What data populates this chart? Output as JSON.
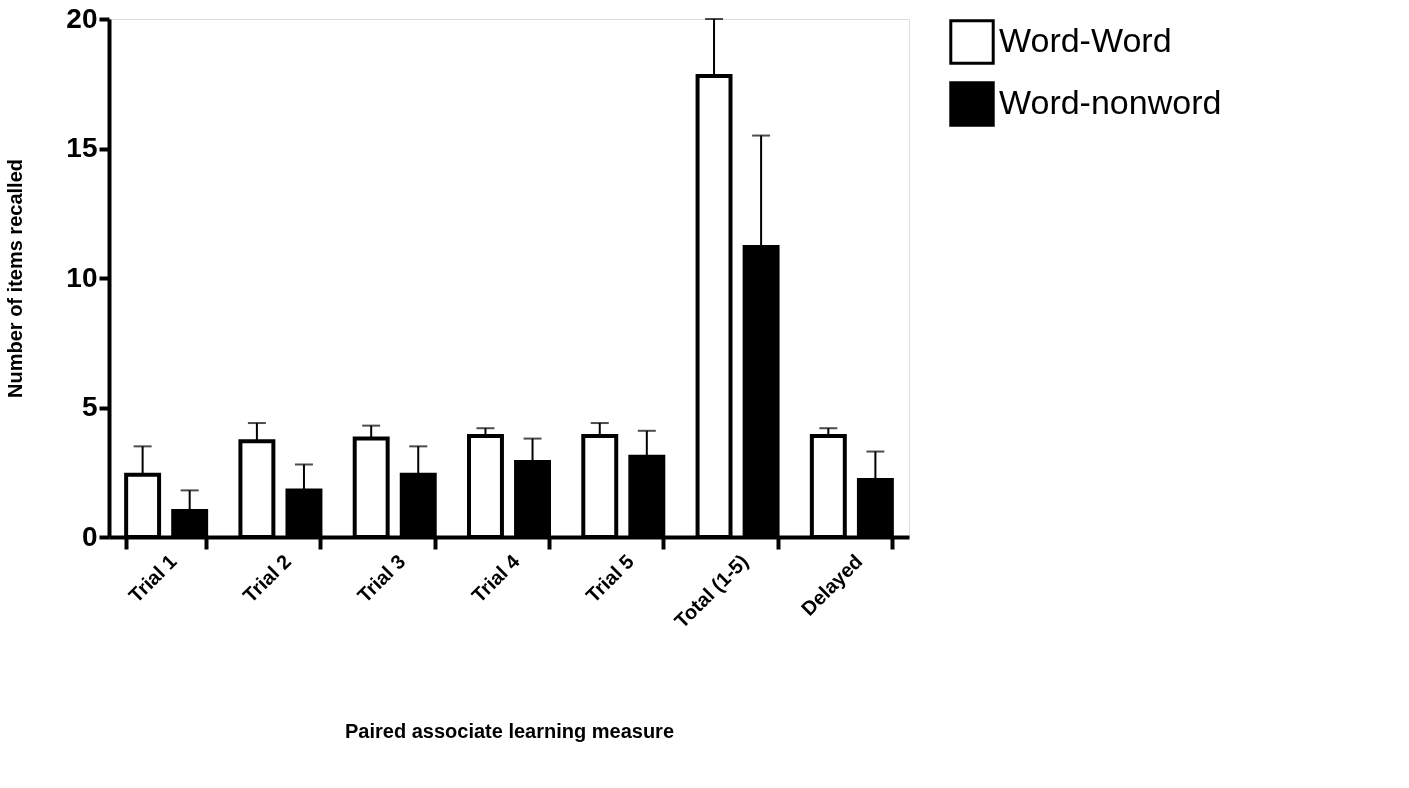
{
  "chart_data": {
    "type": "bar",
    "xlabel": "Paired associate learning measure",
    "ylabel": "Number of items recalled",
    "categories": [
      "Trial 1",
      "Trial 2",
      "Trial 3",
      "Trial 4",
      "Trial 5",
      "Total (1-5)",
      "Delayed"
    ],
    "series": [
      {
        "name": "Word-Word",
        "color": "#ffffff",
        "values": [
          2.4,
          3.7,
          3.8,
          3.9,
          3.9,
          17.8,
          3.9
        ],
        "errors": [
          [
            2.4,
            3.5
          ],
          [
            3.7,
            4.4
          ],
          [
            3.8,
            4.3
          ],
          [
            3.9,
            4.2
          ],
          [
            3.9,
            4.4
          ],
          [
            17.8,
            20.0
          ],
          [
            3.9,
            4.2
          ]
        ]
      },
      {
        "name": "Word-nonword",
        "color": "#000000",
        "values": [
          1.0,
          1.8,
          2.4,
          2.9,
          3.1,
          11.2,
          2.2
        ],
        "errors": [
          [
            1.0,
            1.8
          ],
          [
            1.8,
            2.8
          ],
          [
            2.4,
            3.5
          ],
          [
            2.9,
            3.8
          ],
          [
            3.1,
            4.1
          ],
          [
            11.2,
            15.5
          ],
          [
            2.2,
            3.3
          ]
        ]
      }
    ],
    "ylim": [
      0,
      20
    ],
    "yticks": [
      0,
      5,
      10,
      15,
      20
    ],
    "grid": false,
    "legend": "top right"
  }
}
